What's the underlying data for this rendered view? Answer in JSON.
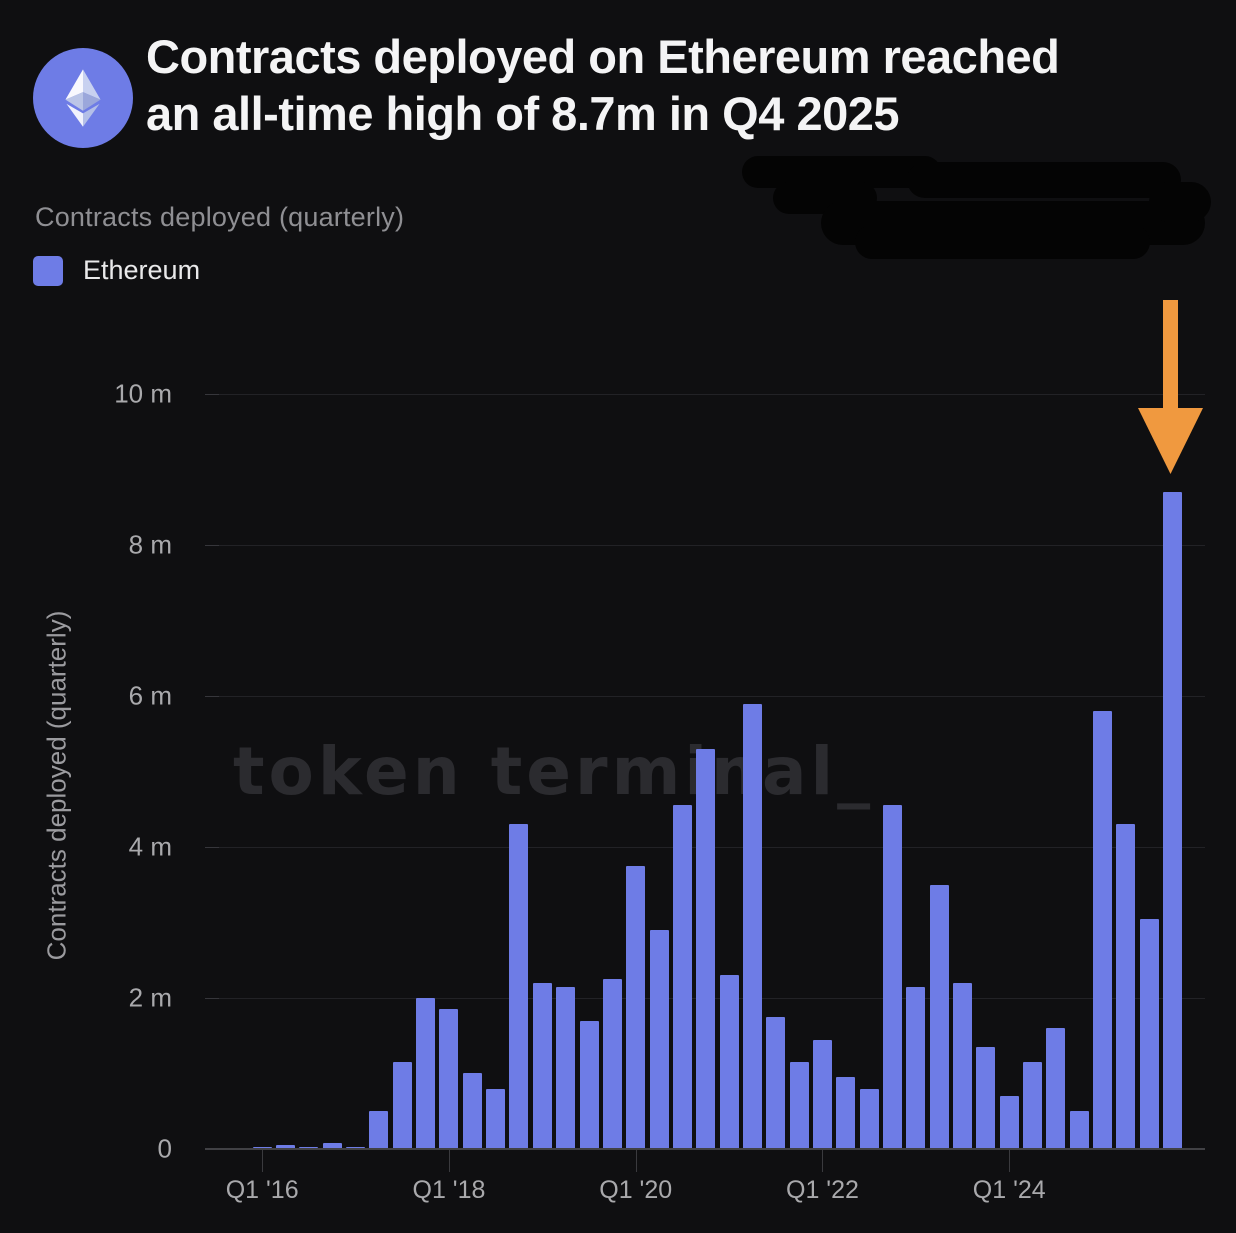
{
  "header": {
    "logo": "ethereum-logo",
    "title_line1": "Contracts deployed on Ethereum reached",
    "title_line2": "an all-time high of 8.7m in Q4 2025"
  },
  "subtitle": "Contracts deployed (quarterly)",
  "legend": {
    "label": "Ethereum",
    "swatch_color": "#6e7ce6"
  },
  "watermark": "token terminal_",
  "colors": {
    "background": "#0f0f11",
    "bar": "#6e7ce6",
    "arrow": "#f0993f",
    "logo_circle": "#6e7ce6",
    "scribble": "#040404",
    "gridline": "#222226",
    "axis_text": "#a9a9ac"
  },
  "chart_data": {
    "type": "bar",
    "title": "Contracts deployed (quarterly)",
    "series_name": "Ethereum",
    "unit": "millions of contracts",
    "ylabel": "Contracts deployed (quarterly)",
    "ylim": [
      0,
      10
    ],
    "grid": "horizontal",
    "legend_position": "top-left",
    "categories": [
      "Q1 '16",
      "Q2 '16",
      "Q3 '16",
      "Q4 '16",
      "Q1 '17",
      "Q2 '17",
      "Q3 '17",
      "Q4 '17",
      "Q1 '18",
      "Q2 '18",
      "Q3 '18",
      "Q4 '18",
      "Q1 '19",
      "Q2 '19",
      "Q3 '19",
      "Q4 '19",
      "Q1 '20",
      "Q2 '20",
      "Q3 '20",
      "Q4 '20",
      "Q1 '21",
      "Q2 '21",
      "Q3 '21",
      "Q4 '21",
      "Q1 '22",
      "Q2 '22",
      "Q3 '22",
      "Q4 '22",
      "Q1 '23",
      "Q2 '23",
      "Q3 '23",
      "Q4 '23",
      "Q1 '24",
      "Q2 '24",
      "Q3 '24",
      "Q4 '24",
      "Q1 '25",
      "Q2 '25",
      "Q3 '25",
      "Q4 '25"
    ],
    "values": [
      0.01,
      0.05,
      0.01,
      0.08,
      0.02,
      0.5,
      1.15,
      2.0,
      1.85,
      1.0,
      0.8,
      4.3,
      2.2,
      2.15,
      1.7,
      2.25,
      3.75,
      2.9,
      4.55,
      5.3,
      2.3,
      5.9,
      1.75,
      1.15,
      1.45,
      0.95,
      0.8,
      4.55,
      2.15,
      3.5,
      2.2,
      1.35,
      0.7,
      1.15,
      1.6,
      0.5,
      5.8,
      4.3,
      3.05,
      8.7
    ],
    "yticks": [
      {
        "value": 0,
        "label": "0"
      },
      {
        "value": 2,
        "label": "2 m"
      },
      {
        "value": 4,
        "label": "4 m"
      },
      {
        "value": 6,
        "label": "6 m"
      },
      {
        "value": 8,
        "label": "8 m"
      },
      {
        "value": 10,
        "label": "10 m"
      }
    ],
    "xticks": [
      {
        "index": 0,
        "label": "Q1 '16"
      },
      {
        "index": 8,
        "label": "Q1 '18"
      },
      {
        "index": 16,
        "label": "Q1 '20"
      },
      {
        "index": 24,
        "label": "Q1 '22"
      },
      {
        "index": 32,
        "label": "Q1 '24"
      }
    ],
    "annotation": {
      "type": "down-arrow",
      "target": "Q4 '25",
      "note": "all-time high 8.7m"
    }
  }
}
